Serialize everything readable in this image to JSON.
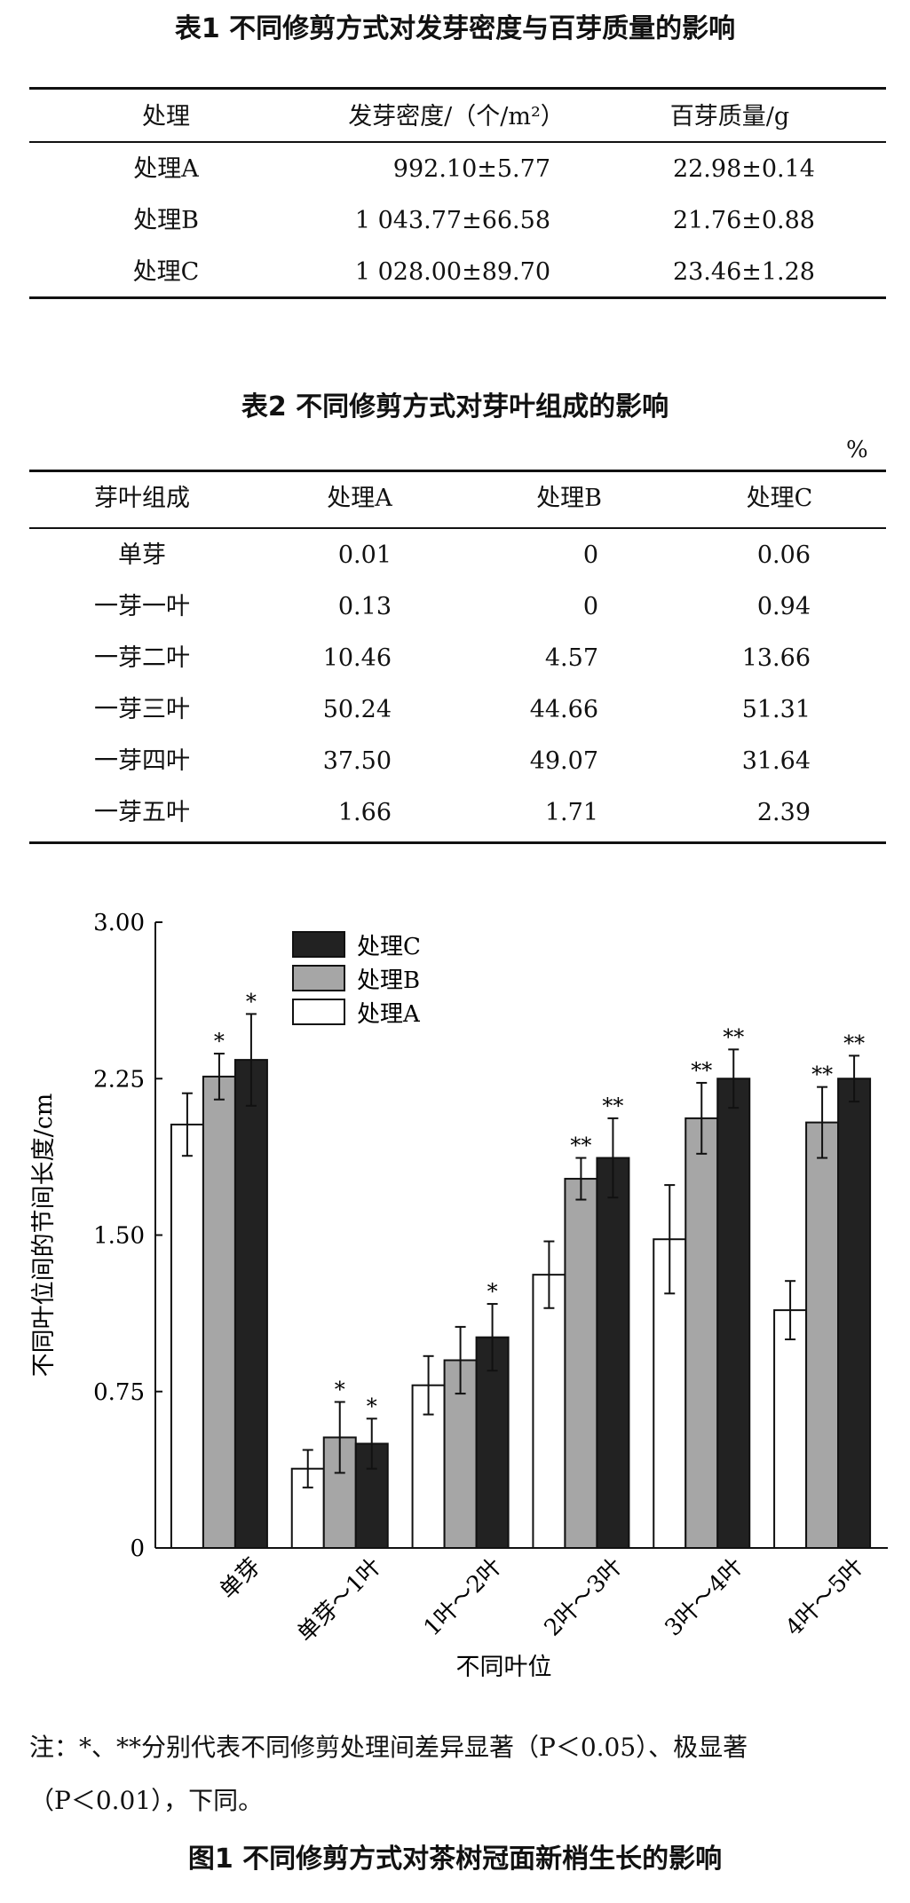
{
  "table1": {
    "caption": "表1  不同修剪方式对发芽密度与百芽质量的影响",
    "headers": [
      "处理",
      "发芽密度/（个/m²）",
      "百芽质量/g"
    ],
    "rows": [
      [
        "处理A",
        "992.10±5.77",
        "22.98±0.14"
      ],
      [
        "处理B",
        "1 043.77±66.58",
        "21.76±0.88"
      ],
      [
        "处理C",
        "1 028.00±89.70",
        "23.46±1.28"
      ]
    ]
  },
  "table2": {
    "caption": "表2  不同修剪方式对芽叶组成的影响",
    "unit": "%",
    "headers": [
      "芽叶组成",
      "处理A",
      "处理B",
      "处理C"
    ],
    "rows": [
      [
        "单芽",
        "0.01",
        "0",
        "0.06"
      ],
      [
        "一芽一叶",
        "0.13",
        "0",
        "0.94"
      ],
      [
        "一芽二叶",
        "10.46",
        "4.57",
        "13.66"
      ],
      [
        "一芽三叶",
        "50.24",
        "44.66",
        "51.31"
      ],
      [
        "一芽四叶",
        "37.50",
        "49.07",
        "31.64"
      ],
      [
        "一芽五叶",
        "1.66",
        "1.71",
        "2.39"
      ]
    ]
  },
  "chart_data": {
    "type": "bar",
    "xlabel": "不同叶位",
    "ylabel": "不同叶位间的节间长度/cm",
    "ylim": [
      0,
      3
    ],
    "yticks": [
      "0",
      "0.75",
      "1.50",
      "2.25",
      "3.00"
    ],
    "categories": [
      "单芽",
      "单芽～1叶",
      "1叶～2叶",
      "2叶～3叶",
      "3叶～4叶",
      "4叶～5叶"
    ],
    "series": [
      {
        "name": "处理A",
        "color": "#ffffff",
        "values": [
          2.03,
          0.38,
          0.78,
          1.31,
          1.48,
          1.14
        ],
        "errors": [
          0.15,
          0.09,
          0.14,
          0.16,
          0.26,
          0.14
        ],
        "sig": [
          "",
          "",
          "",
          "",
          "",
          ""
        ]
      },
      {
        "name": "处理B",
        "color": "#a6a6a6",
        "values": [
          2.26,
          0.53,
          0.9,
          1.77,
          2.06,
          2.04
        ],
        "errors": [
          0.11,
          0.17,
          0.16,
          0.1,
          0.17,
          0.17
        ],
        "sig": [
          "*",
          "*",
          "",
          "**",
          "**",
          "**"
        ]
      },
      {
        "name": "处理C",
        "color": "#222222",
        "values": [
          2.34,
          0.5,
          1.01,
          1.87,
          2.25,
          2.25
        ],
        "errors": [
          0.22,
          0.12,
          0.16,
          0.19,
          0.14,
          0.11
        ],
        "sig": [
          "*",
          "*",
          "*",
          "**",
          "**",
          "**"
        ]
      }
    ],
    "legend_order": [
      "处理C",
      "处理B",
      "处理A"
    ],
    "legend_position": "top-left",
    "grid": false
  },
  "notes": {
    "line1": "注：*、**分别代表不同修剪处理间差异显著（P＜0.05）、极显著",
    "line2": "（P＜0.01），下同。"
  },
  "figure_caption": "图1  不同修剪方式对茶树冠面新梢生长的影响"
}
